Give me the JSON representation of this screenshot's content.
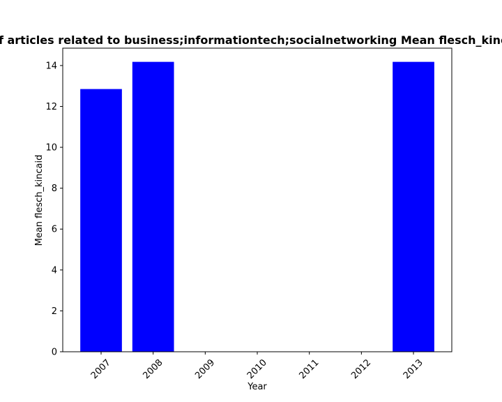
{
  "chart_data": {
    "type": "bar",
    "title": "Evolution of articles related to business;informationtech;socialnetworking Mean flesch_kincaid in period",
    "xlabel": "Year",
    "ylabel": "Mean flesch_kincaid",
    "categories": [
      "2007",
      "2008",
      "2009",
      "2010",
      "2011",
      "2012",
      "2013"
    ],
    "values": [
      12.85,
      14.18,
      0,
      0,
      0,
      0,
      14.18
    ],
    "ylim": [
      0,
      14.85
    ],
    "yticks": [
      0,
      2,
      4,
      6,
      8,
      10,
      12,
      14
    ],
    "bar_color": "#0000ff",
    "grid": false,
    "legend": "none"
  }
}
